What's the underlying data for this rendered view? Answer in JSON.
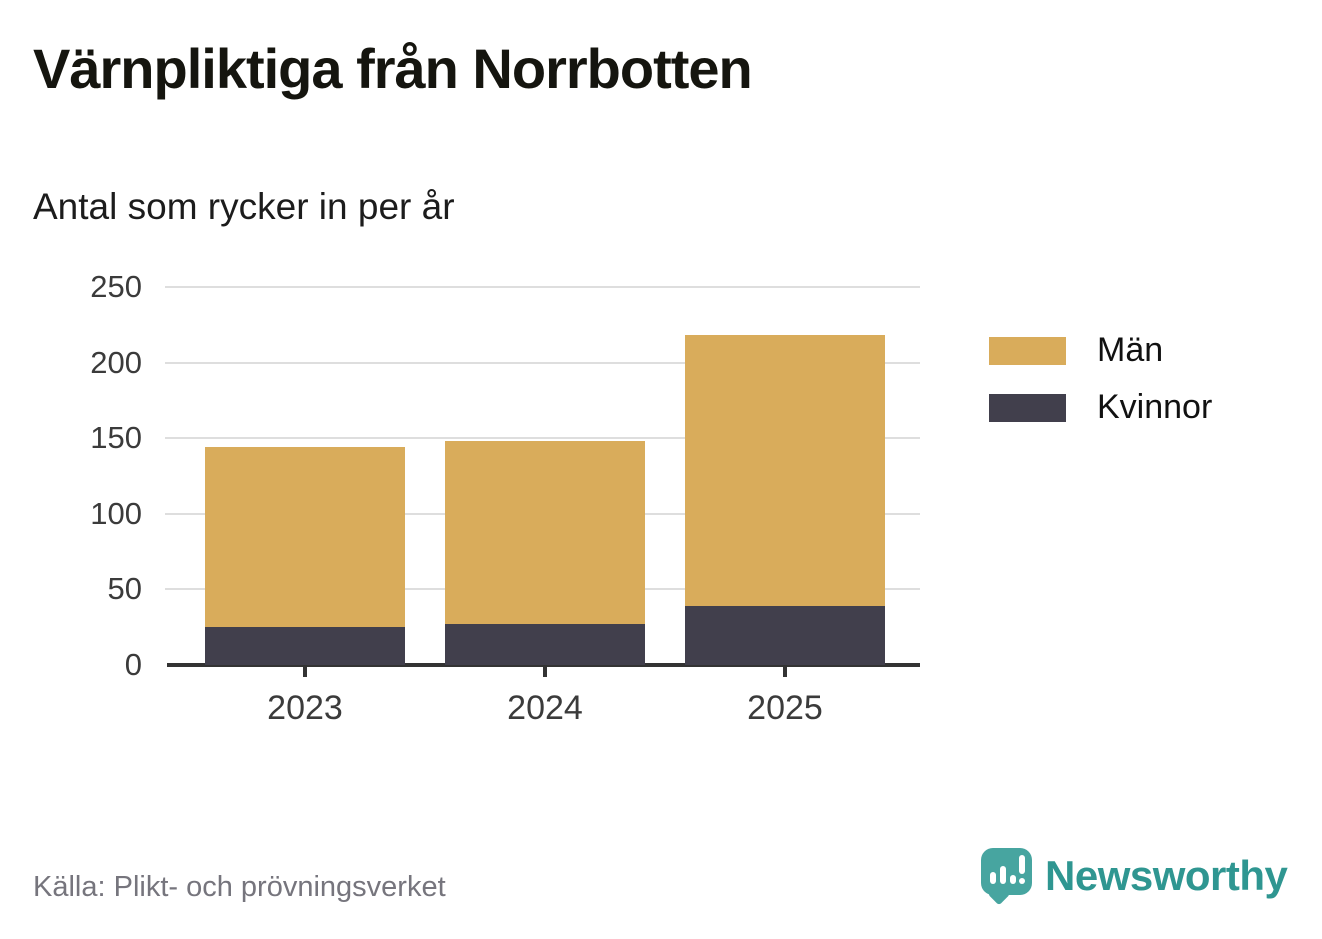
{
  "header": {
    "title": "Värnpliktiga från Norrbotten",
    "subtitle": "Antal som rycker in per år"
  },
  "chart_data": {
    "type": "bar",
    "stacked": true,
    "title": "Värnpliktiga från Norrbotten",
    "subtitle": "Antal som rycker in per år",
    "categories": [
      "2023",
      "2024",
      "2025"
    ],
    "series": [
      {
        "name": "Män",
        "color": "#d9ac5b",
        "values": [
          119,
          121,
          179
        ]
      },
      {
        "name": "Kvinnor",
        "color": "#413f4c",
        "values": [
          25,
          27,
          39
        ]
      }
    ],
    "stack_order_bottom_to_top": [
      "Kvinnor",
      "Män"
    ],
    "totals": [
      144,
      148,
      218
    ],
    "xlabel": "",
    "ylabel": "",
    "ylim": [
      0,
      250
    ],
    "yticks": [
      0,
      50,
      100,
      150,
      200,
      250
    ],
    "grid": true,
    "gridline_color": "#dedede",
    "axis_line_color": "#333333",
    "legend_position": "right"
  },
  "footer": {
    "source": "Källa: Plikt- och prövningsverket",
    "brand": "Newsworthy",
    "brand_text_color": "#2f9691",
    "brand_logo_color": "#47a5a0"
  }
}
